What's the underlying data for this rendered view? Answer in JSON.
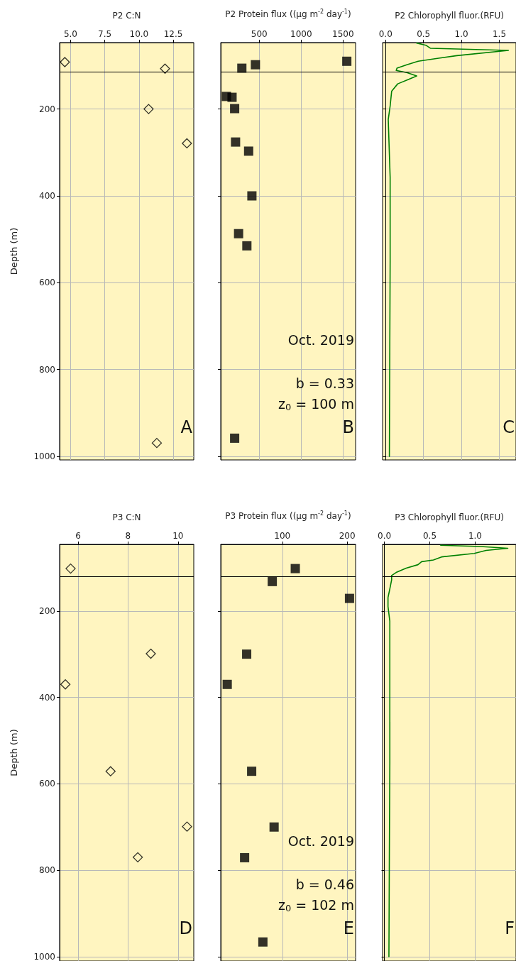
{
  "chart_data": [
    {
      "type": "scatter",
      "title": "P2 C:N",
      "ylabel": "Depth (m)",
      "marker": "diamond",
      "grid": true,
      "series": [
        {
          "color": "#000000",
          "x": [
            4.58,
            11.9,
            10.7,
            13.5,
            11.3
          ],
          "values": [
            92,
            107,
            200,
            279,
            969
          ]
        }
      ],
      "xlim": [
        4.2,
        14.0
      ],
      "xticks": [
        {
          "value": 5,
          "label": "5.0"
        },
        7.5,
        {
          "value": 10,
          "label": "10.0"
        },
        12.5
      ],
      "ylim": [
        1008,
        47
      ],
      "yticks": [
        200,
        400,
        600,
        800,
        1000
      ],
      "ref_lines": [
        {
          "axis": "y",
          "value": 114,
          "color": "#000000"
        }
      ],
      "annotations": [
        "A"
      ]
    },
    {
      "type": "scatter",
      "title": "P2 Protein flux ((μg m$^{-2}$ day$^{-1}$)",
      "marker": "square",
      "grid": true,
      "tick_labels": "x",
      "series": [
        {
          "color": "#000000",
          "x": [
            1545,
            454,
            292,
            108,
            175,
            206,
            217,
            373,
            412,
            253,
            352,
            206
          ],
          "values": [
            90,
            98,
            106,
            171,
            173,
            199,
            276,
            297,
            400,
            487,
            515,
            958
          ]
        }
      ],
      "xlim": [
        40,
        1650
      ],
      "xticks": [
        500,
        1000,
        1500
      ],
      "ylim": [
        1008,
        47
      ],
      "yticks": [
        200,
        400,
        600,
        800,
        1000
      ],
      "ref_lines": [
        {
          "axis": "y",
          "value": 114,
          "color": "#000000"
        }
      ],
      "annotations": [
        "Oct. 2019",
        "b = 0.33",
        "z$_{0}$ = 100 m",
        "B"
      ]
    },
    {
      "type": "line",
      "title": "P2 Chlorophyll fluor.(RFU)",
      "marker": "none",
      "grid": true,
      "tick_labels": "x",
      "series": [
        {
          "color": "#008000",
          "x": [
            0.41,
            0.53,
            0.59,
            1.62,
            0.94,
            0.7,
            0.43,
            0.28,
            0.15,
            0.14,
            0.28,
            0.41,
            0.3,
            0.16,
            0.08,
            0.06,
            0.035,
            0.06,
            0.06,
            0.055,
            0.05
          ],
          "values": [
            48,
            53,
            60,
            65,
            77,
            83,
            90,
            98,
            106,
            111,
            116,
            124,
            132,
            142,
            159,
            193,
            224,
            357,
            550,
            760,
            1000
          ]
        }
      ],
      "xlim": [
        -0.04,
        1.72
      ],
      "xticks": [
        {
          "value": 0,
          "label": "0.0"
        },
        0.5,
        {
          "value": 1,
          "label": "1.0"
        },
        1.5
      ],
      "ylim": [
        1008,
        47
      ],
      "yticks": [
        200,
        400,
        600,
        800,
        1000
      ],
      "ref_lines": [
        {
          "axis": "y",
          "value": 114,
          "color": "#000000"
        }
      ],
      "annotations": [
        "C"
      ]
    },
    {
      "type": "scatter",
      "title": "P3 C:N",
      "ylabel": "Depth (m)",
      "marker": "diamond",
      "grid": true,
      "series": [
        {
          "color": "#000000",
          "x": [
            5.7,
            8.91,
            5.49,
            7.3,
            10.36,
            8.39
          ],
          "values": [
            102,
            299,
            370,
            571,
            699,
            770
          ]
        }
      ],
      "xlim": [
        5.26,
        10.63
      ],
      "xticks": [
        6,
        8,
        10
      ],
      "ylim": [
        1010,
        46
      ],
      "yticks": [
        200,
        400,
        600,
        800,
        1000
      ],
      "ref_lines": [
        {
          "axis": "y",
          "value": 120,
          "color": "#000000"
        }
      ],
      "annotations": [
        "D"
      ]
    },
    {
      "type": "scatter",
      "title": "P3 Protein flux ((μg m$^{-2}$ day$^{-1}$)",
      "marker": "square",
      "grid": true,
      "tick_labels": "x",
      "series": [
        {
          "color": "#000000",
          "x": [
            120,
            84.5,
            203.6,
            45,
            15,
            52.7,
            87.3,
            41.8,
            70
          ],
          "values": [
            102,
            132,
            171,
            300,
            370,
            571,
            700,
            771,
            966
          ]
        }
      ],
      "xlim": [
        5,
        213
      ],
      "xticks": [
        100,
        200
      ],
      "ylim": [
        1010,
        46
      ],
      "yticks": [
        200,
        400,
        600,
        800,
        1000
      ],
      "ref_lines": [
        {
          "axis": "y",
          "value": 120,
          "color": "#000000"
        }
      ],
      "annotations": [
        "Oct. 2019",
        "b = 0.46",
        "z$_{0}$ = 102 m",
        "E"
      ]
    },
    {
      "type": "line",
      "title": "P3 Chlorophyll fluor.(RFU)",
      "marker": "none",
      "grid": true,
      "tick_labels": "x",
      "series": [
        {
          "color": "#008000",
          "x": [
            0.62,
            1.06,
            1.36,
            1.12,
            0.99,
            0.63,
            0.54,
            0.41,
            0.37,
            0.24,
            0.13,
            0.08,
            0.08,
            0.06,
            0.04,
            0.04,
            0.06,
            0.06,
            0.06,
            0.055,
            0.05
          ],
          "values": [
            48,
            51,
            55,
            60,
            67,
            75,
            82,
            86,
            93,
            101,
            111,
            118,
            128,
            149,
            169,
            190,
            224,
            347,
            552,
            757,
            1000
          ]
        }
      ],
      "xlim": [
        -0.02,
        1.45
      ],
      "xticks": [
        {
          "value": 0,
          "label": "0.0"
        },
        0.5,
        {
          "value": 1,
          "label": "1.0"
        }
      ],
      "ylim": [
        1010,
        46
      ],
      "yticks": [
        200,
        400,
        600,
        800,
        1000
      ],
      "ref_lines": [
        {
          "axis": "y",
          "value": 120,
          "color": "#000000"
        }
      ],
      "annotations": [
        "F"
      ]
    }
  ]
}
